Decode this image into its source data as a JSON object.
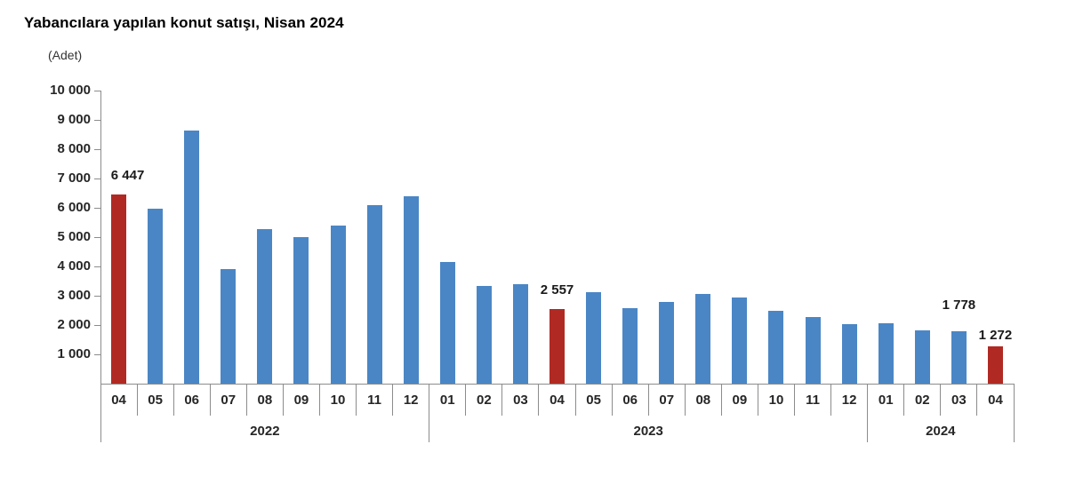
{
  "title": "Yabancılara yapılan konut satışı, Nisan 2024",
  "unit_label": "(Adet)",
  "colors": {
    "bar_blue": "#4A86C5",
    "bar_highlight_red": "#B02A23",
    "axis_gray": "#8C8C8C",
    "text_dark": "#262626"
  },
  "chart_data": {
    "type": "bar",
    "title": "Yabancılara yapılan konut satışı, Nisan 2024",
    "ylabel": "(Adet)",
    "ylim": [
      0,
      10000
    ],
    "ytick_step": 1000,
    "grid": false,
    "legend": "none",
    "ytick_labels": [
      "1 000",
      "2 000",
      "3 000",
      "4 000",
      "5 000",
      "6 000",
      "7 000",
      "8 000",
      "9 000",
      "10 000"
    ],
    "year_groups": [
      {
        "year": "2022",
        "months": [
          "04",
          "05",
          "06",
          "07",
          "08",
          "09",
          "10",
          "11",
          "12"
        ]
      },
      {
        "year": "2023",
        "months": [
          "01",
          "02",
          "03",
          "04",
          "05",
          "06",
          "07",
          "08",
          "09",
          "10",
          "11",
          "12"
        ]
      },
      {
        "year": "2024",
        "months": [
          "01",
          "02",
          "03",
          "04"
        ]
      }
    ],
    "points": [
      {
        "year": "2022",
        "month": "04",
        "value": 6447,
        "highlight": true,
        "label": "6 447"
      },
      {
        "year": "2022",
        "month": "05",
        "value": 5960,
        "highlight": false
      },
      {
        "year": "2022",
        "month": "06",
        "value": 8630,
        "highlight": false
      },
      {
        "year": "2022",
        "month": "07",
        "value": 3910,
        "highlight": false
      },
      {
        "year": "2022",
        "month": "08",
        "value": 5280,
        "highlight": false
      },
      {
        "year": "2022",
        "month": "09",
        "value": 5010,
        "highlight": false
      },
      {
        "year": "2022",
        "month": "10",
        "value": 5380,
        "highlight": false
      },
      {
        "year": "2022",
        "month": "11",
        "value": 6090,
        "highlight": false
      },
      {
        "year": "2022",
        "month": "12",
        "value": 6390,
        "highlight": false
      },
      {
        "year": "2023",
        "month": "01",
        "value": 4150,
        "highlight": false
      },
      {
        "year": "2023",
        "month": "02",
        "value": 3330,
        "highlight": false
      },
      {
        "year": "2023",
        "month": "03",
        "value": 3380,
        "highlight": false
      },
      {
        "year": "2023",
        "month": "04",
        "value": 2557,
        "highlight": true,
        "label": "2 557"
      },
      {
        "year": "2023",
        "month": "05",
        "value": 3110,
        "highlight": false
      },
      {
        "year": "2023",
        "month": "06",
        "value": 2590,
        "highlight": false
      },
      {
        "year": "2023",
        "month": "07",
        "value": 2790,
        "highlight": false
      },
      {
        "year": "2023",
        "month": "08",
        "value": 3050,
        "highlight": false
      },
      {
        "year": "2023",
        "month": "09",
        "value": 2940,
        "highlight": false
      },
      {
        "year": "2023",
        "month": "10",
        "value": 2490,
        "highlight": false
      },
      {
        "year": "2023",
        "month": "11",
        "value": 2280,
        "highlight": false
      },
      {
        "year": "2023",
        "month": "12",
        "value": 2040,
        "highlight": false
      },
      {
        "year": "2024",
        "month": "01",
        "value": 2060,
        "highlight": false
      },
      {
        "year": "2024",
        "month": "02",
        "value": 1810,
        "highlight": false
      },
      {
        "year": "2024",
        "month": "03",
        "value": 1778,
        "highlight": false,
        "label": "1 778"
      },
      {
        "year": "2024",
        "month": "04",
        "value": 1272,
        "highlight": true,
        "label": "1 272"
      }
    ]
  }
}
